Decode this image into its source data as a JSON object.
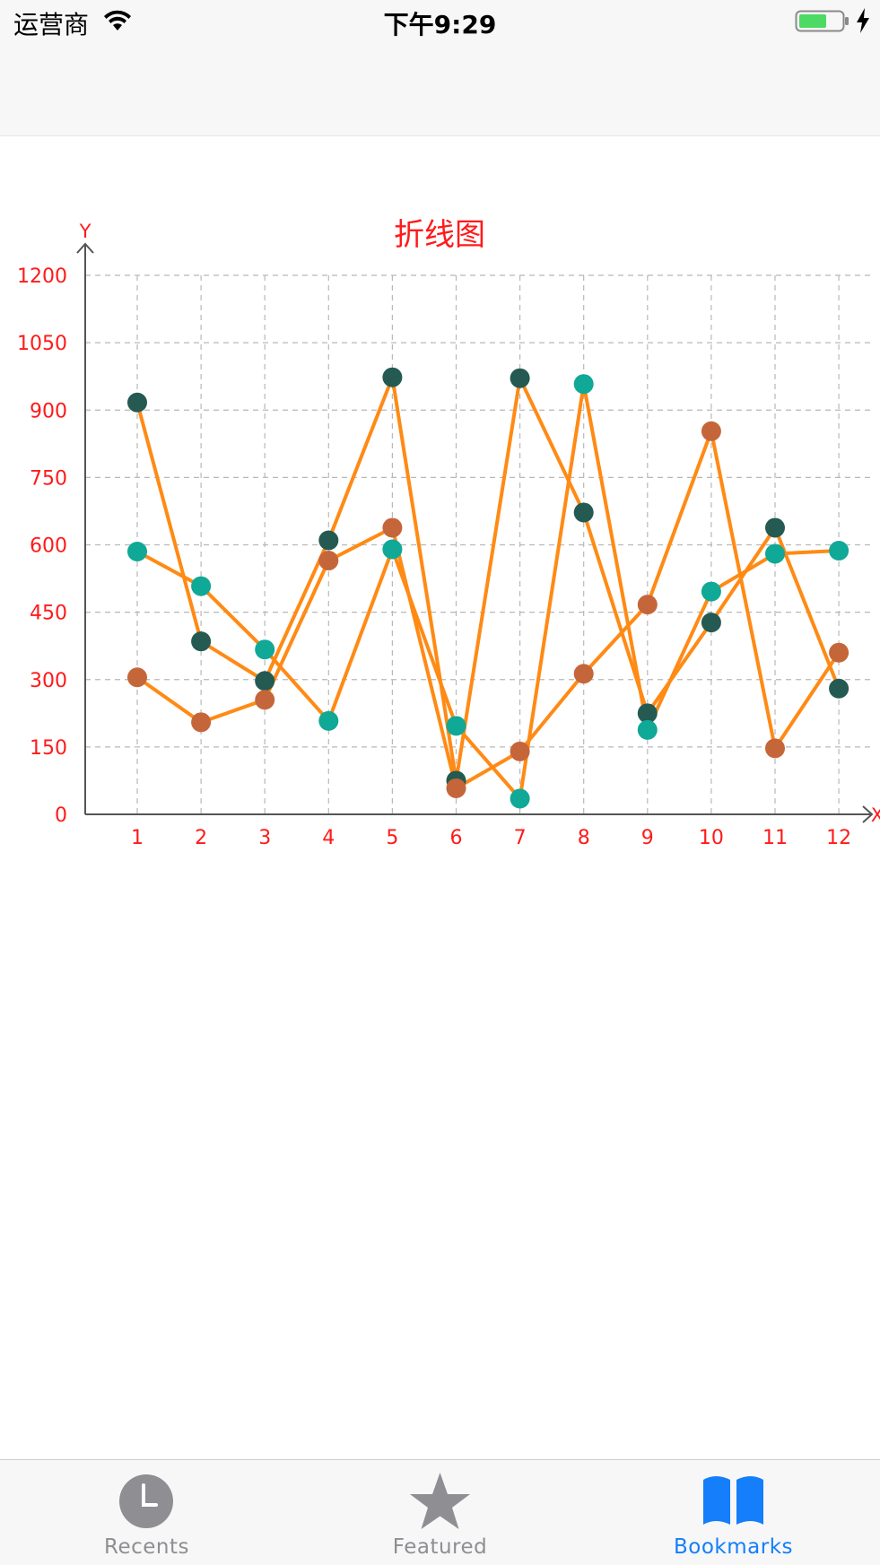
{
  "status_bar": {
    "carrier": "运营商",
    "time": "下午9:29"
  },
  "colors": {
    "line": "#ff8a14",
    "axis_text": "#ff1a1a",
    "axis": "#555555",
    "grid": "#b8b8b8",
    "battery_fill": "#4cd964",
    "tab_active": "#147efb",
    "tab_inactive": "#8e8e93"
  },
  "chart_data": {
    "type": "line",
    "title": "折线图",
    "xlabel": "X",
    "ylabel": "Y",
    "categories": [
      "1",
      "2",
      "3",
      "4",
      "5",
      "6",
      "7",
      "8",
      "9",
      "10",
      "11",
      "12"
    ],
    "ylim": [
      0,
      1200
    ],
    "yticks": [
      "0",
      "150",
      "300",
      "450",
      "600",
      "750",
      "900",
      "1050",
      "1200"
    ],
    "grid": true,
    "series": [
      {
        "marker_color": "#245a52",
        "values": [
          917,
          385,
          297,
          610,
          973,
          75,
          971,
          672,
          225,
          427,
          638,
          280
        ]
      },
      {
        "marker_color": "#10a896",
        "values": [
          585,
          508,
          367,
          208,
          590,
          197,
          35,
          958,
          188,
          496,
          580,
          587
        ]
      },
      {
        "marker_color": "#c5663a",
        "values": [
          305,
          205,
          255,
          565,
          638,
          58,
          140,
          313,
          467,
          853,
          147,
          360
        ]
      }
    ]
  },
  "tab_bar": {
    "tabs": [
      {
        "label": "Recents",
        "icon": "clock-icon",
        "active": false
      },
      {
        "label": "Featured",
        "icon": "star-icon",
        "active": false
      },
      {
        "label": "Bookmarks",
        "icon": "book-icon",
        "active": true
      }
    ]
  }
}
